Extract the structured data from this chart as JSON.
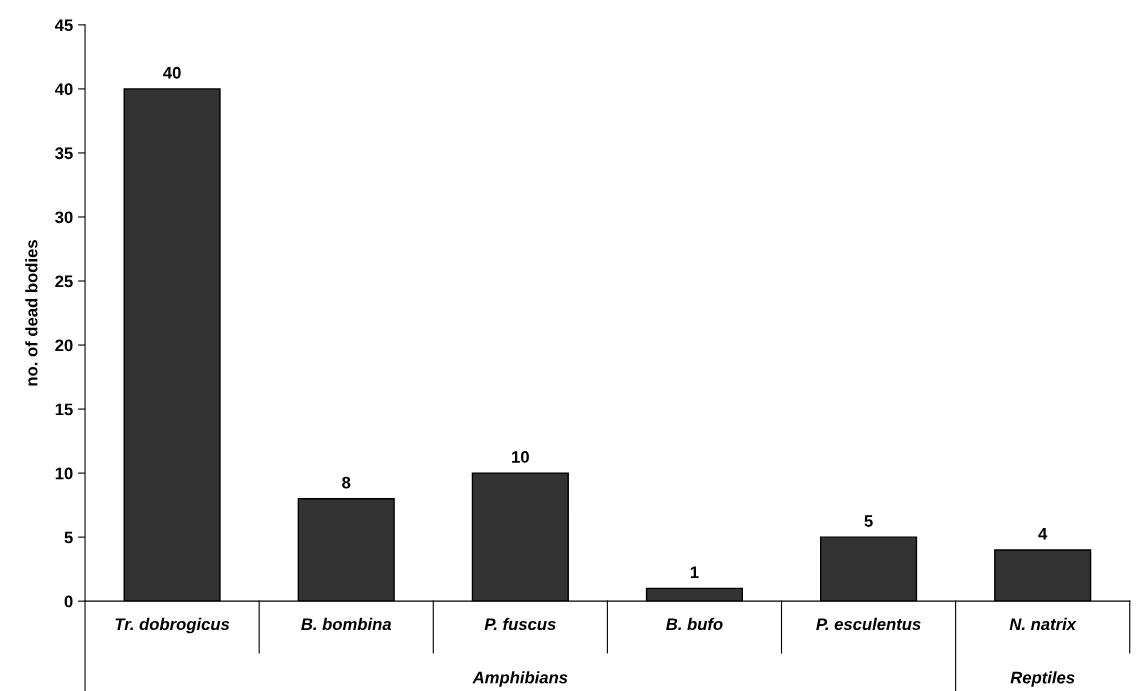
{
  "chart_data": {
    "type": "bar",
    "ylabel": "no. of dead bodies",
    "categories": [
      "Tr. dobrogicus",
      "B. bombina",
      "P. fuscus",
      "B. bufo",
      "P. esculentus",
      "N. natrix"
    ],
    "values": [
      40,
      8,
      10,
      1,
      5,
      4
    ],
    "color": "#333333",
    "ylim": [
      0,
      45
    ],
    "yticks": [
      0,
      5,
      10,
      15,
      20,
      25,
      30,
      35,
      40,
      45
    ],
    "data_labels": true,
    "grid": false,
    "legend": false,
    "annotations": [
      "Amphibians",
      "Reptiles"
    ]
  }
}
